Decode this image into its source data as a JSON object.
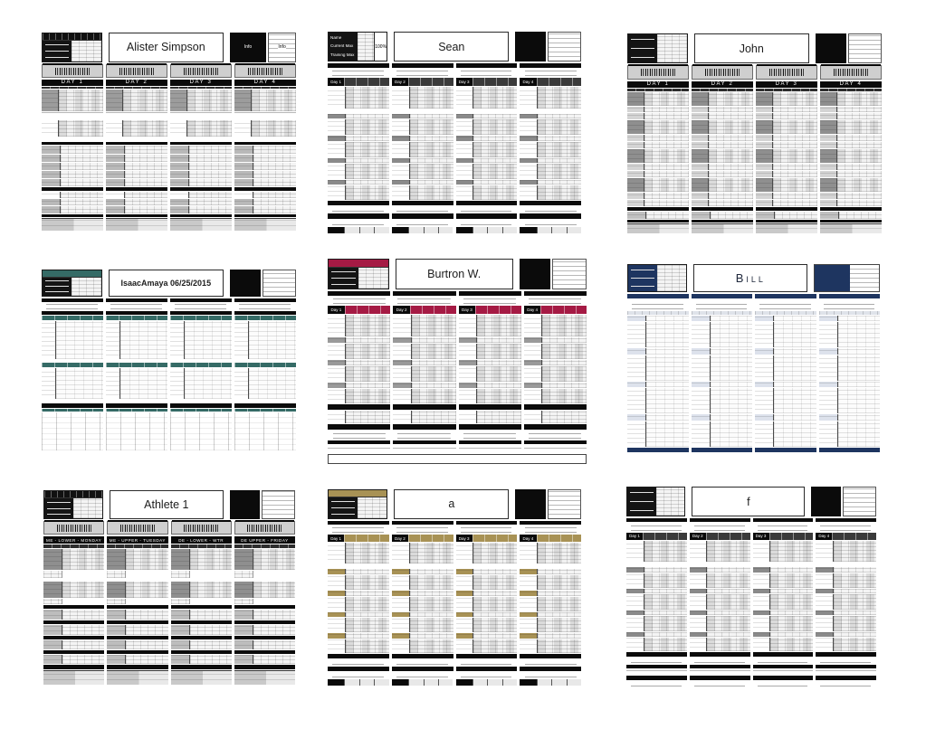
{
  "page": {
    "background": "#ffffff"
  },
  "sheets": [
    {
      "id": "alister-simpson",
      "name": "Alister Simpson",
      "accent": "#1a1a1a",
      "days": [
        "DAY 1",
        "DAY 2",
        "DAY 3",
        "DAY 4"
      ],
      "info_left": "Info",
      "info_right": "Info"
    },
    {
      "id": "sean",
      "name": "Sean",
      "accent": "#2e2e2e",
      "days": [
        "Day 1",
        "Day 2",
        "Day 3",
        "Day 4"
      ],
      "meta_labels": [
        "Name",
        "Current Max",
        "Training Max"
      ],
      "meta_value": "100%"
    },
    {
      "id": "john",
      "name": "John",
      "accent": "#1a1a1a",
      "days": [
        "DAY 1",
        "DAY 2",
        "DAY 3",
        "DAY 4"
      ]
    },
    {
      "id": "isaacamaya",
      "name": "IsaacAmaya 06/25/2015",
      "accent": "#356b66"
    },
    {
      "id": "burtron-w",
      "name": "Burtron W.",
      "accent": "#a51a44",
      "days": [
        "Day 1",
        "Day 2",
        "Day 3",
        "Day 4"
      ]
    },
    {
      "id": "bill",
      "name": "Bill",
      "accent": "#1e3560"
    },
    {
      "id": "athlete-1",
      "name": "Athlete 1",
      "accent": "#1a1a1a",
      "days": [
        "ME - Lower - Monday",
        "ME - Upper - Tuesday",
        "DE - Lower - WTR",
        "DE Upper - Friday"
      ]
    },
    {
      "id": "a",
      "name": "a",
      "accent": "#a89255",
      "days": [
        "Day 1",
        "Day 2",
        "Day 3",
        "Day 4"
      ]
    },
    {
      "id": "f",
      "name": "f",
      "accent": "#2e2e2e",
      "days": [
        "Day 1",
        "Day 2",
        "Day 3",
        "Day 4"
      ]
    }
  ]
}
